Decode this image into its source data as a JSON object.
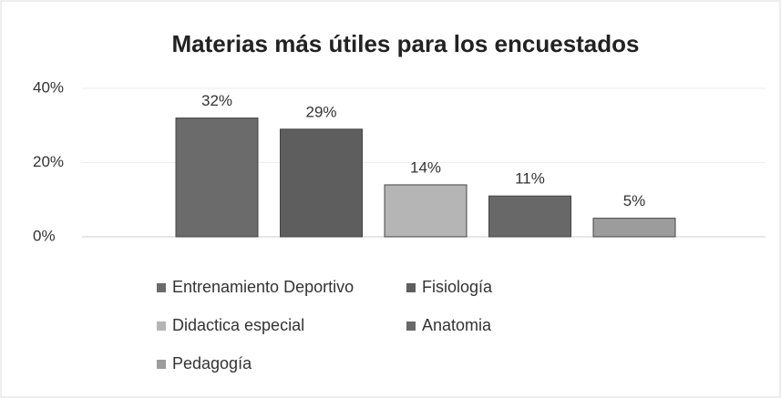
{
  "chart_data": {
    "type": "bar",
    "title": "Materias más útiles para los encuestados",
    "categories": [
      null
    ],
    "series": [
      {
        "name": "Entrenamiento Deportivo",
        "color": "#6b6b6b",
        "values": [
          32
        ],
        "value_labels": [
          "32%"
        ]
      },
      {
        "name": "Fisiología",
        "color": "#5e5e5e",
        "values": [
          29
        ],
        "value_labels": [
          "29%"
        ]
      },
      {
        "name": "Didactica especial",
        "color": "#b5b5b5",
        "values": [
          14
        ],
        "value_labels": [
          "14%"
        ]
      },
      {
        "name": "Anatomia",
        "color": "#686868",
        "values": [
          11
        ],
        "value_labels": [
          "11%"
        ]
      },
      {
        "name": "Pedagogía",
        "color": "#9c9c9c",
        "values": [
          5
        ],
        "value_labels": [
          "5%"
        ]
      }
    ],
    "ylim": [
      0,
      40
    ],
    "yticks": [
      {
        "value": 0,
        "label": "0%"
      },
      {
        "value": 20,
        "label": "20%"
      },
      {
        "value": 40,
        "label": "40%"
      }
    ],
    "grid": true,
    "legend": "bottom"
  }
}
